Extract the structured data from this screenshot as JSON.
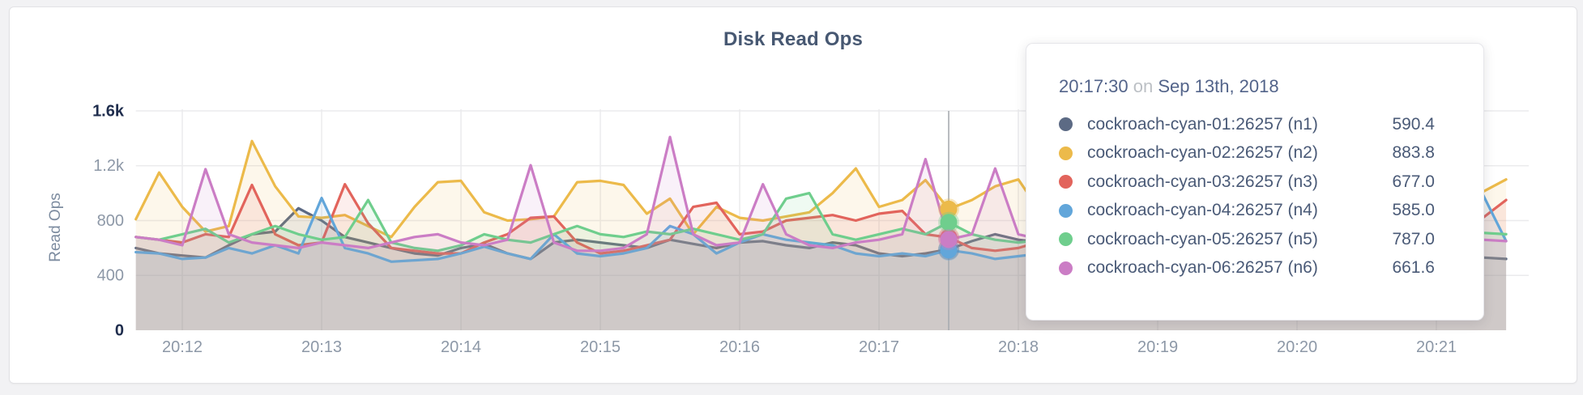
{
  "header": {
    "title": "Disk Read Ops"
  },
  "axes": {
    "y_label": "Read Ops",
    "y_ticks": [
      {
        "label": "0",
        "value": 0,
        "strong": true
      },
      {
        "label": "400",
        "value": 400,
        "strong": false
      },
      {
        "label": "800",
        "value": 800,
        "strong": false
      },
      {
        "label": "1.2k",
        "value": 1200,
        "strong": false
      },
      {
        "label": "1.6k",
        "value": 1600,
        "strong": true
      }
    ],
    "x_ticks": [
      "20:12",
      "20:13",
      "20:14",
      "20:15",
      "20:16",
      "20:17",
      "20:18",
      "20:19",
      "20:20",
      "20:21"
    ]
  },
  "tooltip": {
    "time": "20:17:30",
    "conjunction": "on",
    "date": "Sep 13th, 2018",
    "rows": [
      {
        "label": "cockroach-cyan-01:26257 (n1)",
        "value": "590.4",
        "color": "#5c6a84"
      },
      {
        "label": "cockroach-cyan-02:26257 (n2)",
        "value": "883.8",
        "color": "#ecba4a"
      },
      {
        "label": "cockroach-cyan-03:26257 (n3)",
        "value": "677.0",
        "color": "#e2645c"
      },
      {
        "label": "cockroach-cyan-04:26257 (n4)",
        "value": "585.0",
        "color": "#62a6da"
      },
      {
        "label": "cockroach-cyan-05:26257 (n5)",
        "value": "787.0",
        "color": "#6fce8d"
      },
      {
        "label": "cockroach-cyan-06:26257 (n6)",
        "value": "661.6",
        "color": "#cb7dc5"
      }
    ]
  },
  "chart_data": {
    "type": "area",
    "title": "Disk Read Ops",
    "xlabel": "",
    "ylabel": "Read Ops",
    "ylim": [
      0,
      1600
    ],
    "grid": true,
    "legend_position": "tooltip-overlay",
    "x_start_time": "20:11:40",
    "x_end_time": "20:21:30",
    "x_step_seconds": 10,
    "x_minute_ticks": [
      "20:12",
      "20:13",
      "20:14",
      "20:15",
      "20:16",
      "20:17",
      "20:18",
      "20:19",
      "20:20",
      "20:21"
    ],
    "hover": {
      "index": 35,
      "time": "20:17:30",
      "date": "Sep 13th, 2018"
    },
    "series": [
      {
        "name": "cockroach-cyan-01:26257 (n1)",
        "color": "#5c6a84",
        "values": [
          600,
          560,
          545,
          530,
          620,
          700,
          720,
          890,
          800,
          680,
          640,
          600,
          560,
          545,
          600,
          630,
          560,
          520,
          640,
          660,
          640,
          620,
          600,
          660,
          630,
          600,
          640,
          650,
          620,
          600,
          640,
          620,
          560,
          540,
          560,
          590.4,
          650,
          700,
          660,
          640,
          610,
          580,
          560,
          580,
          600,
          580,
          560,
          540,
          560,
          620,
          600,
          570,
          600,
          620,
          640,
          600,
          560,
          540,
          530,
          520
        ]
      },
      {
        "name": "cockroach-cyan-02:26257 (n2)",
        "color": "#ecba4a",
        "values": [
          810,
          1150,
          900,
          720,
          760,
          1380,
          1050,
          830,
          820,
          840,
          760,
          680,
          900,
          1080,
          1090,
          860,
          800,
          810,
          830,
          1080,
          1090,
          1060,
          850,
          960,
          700,
          900,
          820,
          800,
          830,
          860,
          1000,
          1180,
          900,
          950,
          1095,
          883.8,
          950,
          1050,
          1100,
          850,
          760,
          1250,
          1290,
          1300,
          1000,
          820,
          700,
          820,
          840,
          820,
          800,
          850,
          1050,
          1100,
          1080,
          780,
          700,
          820,
          1010,
          1100
        ]
      },
      {
        "name": "cockroach-cyan-03:26257 (n3)",
        "color": "#e2645c",
        "values": [
          680,
          660,
          640,
          700,
          680,
          1060,
          700,
          620,
          640,
          1065,
          780,
          600,
          580,
          560,
          560,
          640,
          700,
          820,
          830,
          640,
          560,
          580,
          620,
          660,
          900,
          930,
          700,
          720,
          800,
          820,
          840,
          800,
          850,
          870,
          700,
          677,
          600,
          580,
          600,
          650,
          700,
          720,
          700,
          680,
          660,
          640,
          620,
          650,
          680,
          700,
          720,
          700,
          680,
          660,
          700,
          750,
          820,
          700,
          820,
          950
        ]
      },
      {
        "name": "cockroach-cyan-04:26257 (n4)",
        "color": "#62a6da",
        "values": [
          570,
          560,
          520,
          530,
          600,
          560,
          620,
          560,
          965,
          600,
          560,
          500,
          510,
          520,
          560,
          610,
          560,
          520,
          700,
          560,
          540,
          560,
          600,
          760,
          700,
          560,
          640,
          700,
          660,
          640,
          620,
          560,
          540,
          560,
          540,
          585,
          560,
          520,
          540,
          560,
          580,
          560,
          540,
          560,
          580,
          560,
          540,
          560,
          580,
          560,
          540,
          560,
          580,
          560,
          540,
          560,
          580,
          700,
          990,
          650
        ]
      },
      {
        "name": "cockroach-cyan-05:26257 (n5)",
        "color": "#6fce8d",
        "values": [
          680,
          660,
          700,
          740,
          640,
          700,
          760,
          700,
          660,
          680,
          950,
          640,
          600,
          580,
          620,
          700,
          660,
          640,
          700,
          760,
          700,
          680,
          720,
          700,
          740,
          700,
          660,
          700,
          960,
          1000,
          700,
          660,
          700,
          740,
          700,
          787,
          700,
          660,
          640,
          660,
          700,
          720,
          700,
          680,
          700,
          720,
          700,
          680,
          700,
          720,
          700,
          680,
          700,
          720,
          700,
          680,
          700,
          720,
          710,
          700
        ]
      },
      {
        "name": "cockroach-cyan-06:26257 (n6)",
        "color": "#cb7dc5",
        "values": [
          680,
          660,
          620,
          1175,
          700,
          640,
          620,
          600,
          640,
          620,
          600,
          640,
          680,
          700,
          640,
          620,
          660,
          1204,
          640,
          580,
          580,
          600,
          700,
          1410,
          700,
          620,
          640,
          1065,
          700,
          620,
          600,
          640,
          660,
          700,
          1248,
          661.6,
          700,
          1180,
          700,
          660,
          640,
          620,
          600,
          620,
          640,
          660,
          680,
          660,
          640,
          620,
          600,
          620,
          640,
          660,
          640,
          620,
          600,
          620,
          660,
          650
        ]
      }
    ]
  },
  "style_colors": {
    "page_background": "#f2f2f4",
    "card_background": "#ffffff",
    "grid_line": "#ebebed",
    "hover_guideline": "#a8abb0",
    "axis_text": "#8d98a7",
    "axis_text_strong": "#1f2d4d",
    "title_text": "#475872",
    "tooltip_text": "#4a5a77"
  }
}
